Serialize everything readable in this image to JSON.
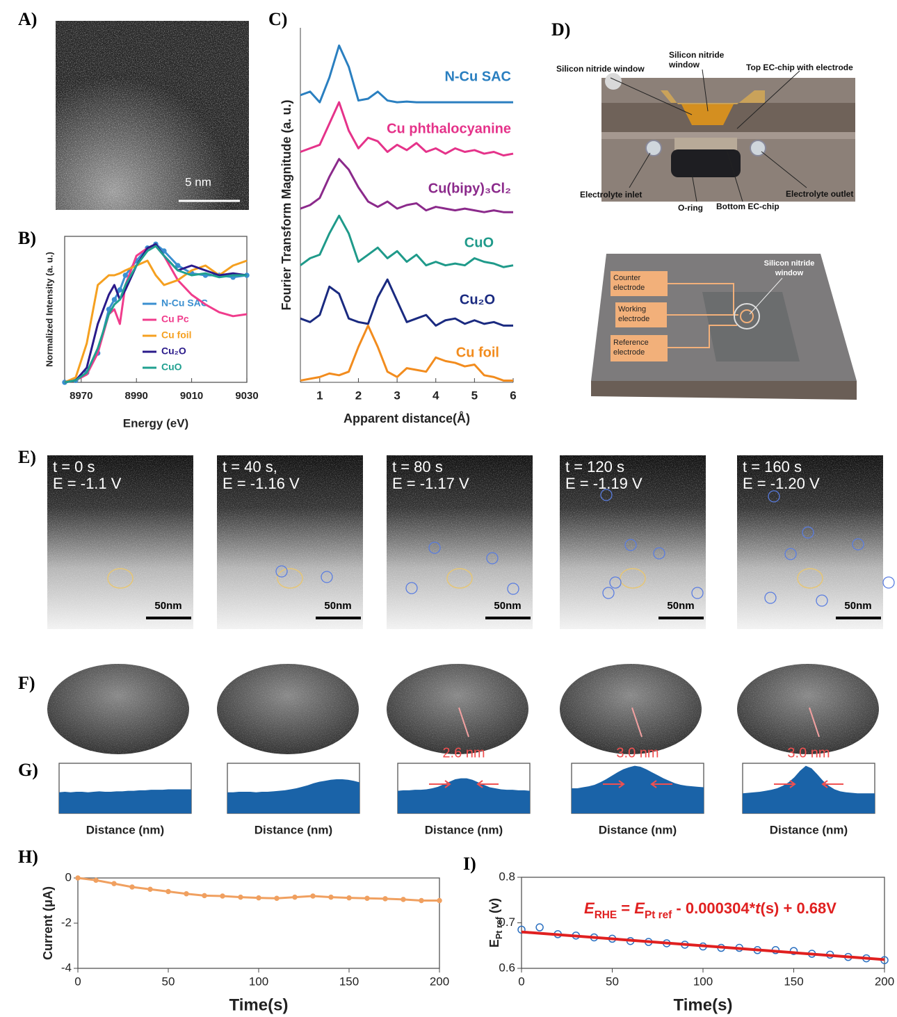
{
  "panel_labels": [
    "A)",
    "B)",
    "C)",
    "D)",
    "E)",
    "F)",
    "G)",
    "H)",
    "I)"
  ],
  "panel_a": {
    "scale": "5 nm"
  },
  "panel_d": {
    "labels": [
      "Silicon nitride window",
      "Silicon nitride window",
      "Top EC-chip with electrode",
      "Electrolyte inlet",
      "O-ring",
      "Bottom EC-chip",
      "Electrolyte outlet",
      "Counter electrode",
      "Working electrode",
      "Reference electrode",
      "Silicon nitride window"
    ]
  },
  "panel_e": {
    "frames": [
      {
        "t": "t = 0 s",
        "E": "E = -1.1 V",
        "scale": "50nm"
      },
      {
        "t": "t = 40 s,",
        "E": "E = -1.16 V",
        "scale": "50nm"
      },
      {
        "t": "t = 80 s",
        "E": "E = -1.17 V",
        "scale": "50nm"
      },
      {
        "t": "t = 120 s",
        "E": "E = -1.19 V",
        "scale": "50nm"
      },
      {
        "t": "t = 160 s",
        "E": "E = -1.20 V",
        "scale": "50nm"
      }
    ]
  },
  "chart_data": [
    {
      "type": "line",
      "xlabel": "Energy (eV)",
      "ylabel": "Normalized Intensity (a. u.)",
      "x": [
        8964,
        8968,
        8972,
        8976,
        8980,
        8982,
        8984,
        8986,
        8990,
        8994,
        8997,
        9000,
        9005,
        9010,
        9015,
        9020,
        9025,
        9030
      ],
      "xlim": [
        8964,
        9030
      ],
      "xticks": [
        8970,
        8990,
        9010,
        9030
      ],
      "ylim": [
        0,
        1.5
      ],
      "legend": "lower right",
      "series": [
        {
          "name": "N-Cu SAC",
          "color": "#3a8fd0",
          "style": "line+markers",
          "values": [
            0,
            0.02,
            0.1,
            0.3,
            0.75,
            0.85,
            0.95,
            1.1,
            1.25,
            1.38,
            1.42,
            1.35,
            1.2,
            1.12,
            1.1,
            1.1,
            1.08,
            1.1
          ]
        },
        {
          "name": "Cu Pc",
          "color": "#f03c8c",
          "style": "line",
          "values": [
            0,
            0.02,
            0.08,
            0.3,
            0.7,
            0.75,
            0.6,
            1.0,
            1.3,
            1.38,
            1.4,
            1.3,
            1.05,
            0.9,
            0.8,
            0.72,
            0.68,
            0.7
          ]
        },
        {
          "name": "Cu foil",
          "color": "#f5a020",
          "style": "line",
          "values": [
            0,
            0.05,
            0.4,
            1.0,
            1.1,
            1.1,
            1.12,
            1.15,
            1.2,
            1.25,
            1.1,
            1.0,
            1.05,
            1.15,
            1.2,
            1.1,
            1.2,
            1.25
          ]
        },
        {
          "name": "Cu₂O",
          "color": "#2a1a8a",
          "style": "line",
          "values": [
            0,
            0.02,
            0.15,
            0.6,
            0.9,
            1.0,
            0.85,
            0.95,
            1.2,
            1.38,
            1.42,
            1.3,
            1.15,
            1.2,
            1.15,
            1.1,
            1.12,
            1.1
          ]
        },
        {
          "name": "CuO",
          "color": "#20a090",
          "style": "line",
          "values": [
            0,
            0.02,
            0.1,
            0.35,
            0.7,
            0.8,
            0.85,
            1.0,
            1.2,
            1.35,
            1.4,
            1.3,
            1.15,
            1.1,
            1.12,
            1.08,
            1.1,
            1.1
          ]
        }
      ]
    },
    {
      "type": "line",
      "xlabel": "Apparent distance(Å)",
      "ylabel": "Fourier Transform Magnitude (a. u.)",
      "x": [
        0.5,
        0.75,
        1,
        1.25,
        1.5,
        1.75,
        2,
        2.25,
        2.5,
        2.75,
        3,
        3.25,
        3.5,
        3.75,
        4,
        4.25,
        4.5,
        4.75,
        5,
        5.25,
        5.5,
        5.75,
        6
      ],
      "xlim": [
        0.5,
        6
      ],
      "xticks": [
        1,
        2,
        3,
        4,
        5,
        6
      ],
      "ylim": [
        0,
        10
      ],
      "legend": "direct",
      "series": [
        {
          "name": "N-Cu SAC",
          "color": "#2a7fc0",
          "style": "line",
          "values": [
            8.1,
            8.2,
            7.9,
            8.6,
            9.5,
            8.9,
            7.95,
            8.0,
            8.2,
            7.95,
            7.9,
            7.92,
            7.9,
            7.9,
            7.9,
            7.9,
            7.9,
            7.9,
            7.9,
            7.9,
            7.9,
            7.9,
            7.9
          ]
        },
        {
          "name": "Cu phthalocyanine",
          "color": "#e5338a",
          "style": "line",
          "values": [
            6.5,
            6.6,
            6.7,
            7.3,
            7.9,
            7.1,
            6.6,
            6.9,
            6.8,
            6.5,
            6.7,
            6.55,
            6.75,
            6.5,
            6.6,
            6.45,
            6.6,
            6.5,
            6.55,
            6.45,
            6.5,
            6.4,
            6.45
          ]
        },
        {
          "name": "Cu(bipy)₃Cl₂",
          "color": "#8b2a8b",
          "style": "line",
          "values": [
            4.9,
            5.0,
            5.2,
            5.8,
            6.3,
            6.0,
            5.5,
            5.1,
            4.95,
            5.1,
            4.9,
            5.0,
            5.05,
            4.85,
            4.95,
            4.9,
            4.85,
            4.9,
            4.85,
            4.8,
            4.85,
            4.8,
            4.8
          ]
        },
        {
          "name": "CuO",
          "color": "#1f9a8a",
          "style": "line",
          "values": [
            3.3,
            3.5,
            3.6,
            4.2,
            4.7,
            4.2,
            3.4,
            3.6,
            3.8,
            3.5,
            3.7,
            3.4,
            3.6,
            3.3,
            3.4,
            3.3,
            3.35,
            3.3,
            3.5,
            3.4,
            3.35,
            3.25,
            3.3
          ]
        },
        {
          "name": "Cu₂O",
          "color": "#1a2a80",
          "style": "line",
          "values": [
            1.8,
            1.7,
            1.9,
            2.7,
            2.5,
            1.8,
            1.7,
            1.65,
            2.4,
            2.9,
            2.3,
            1.7,
            1.8,
            1.9,
            1.6,
            1.75,
            1.8,
            1.65,
            1.75,
            1.65,
            1.7,
            1.6,
            1.6
          ]
        },
        {
          "name": "Cu foil",
          "color": "#f28c1e",
          "style": "line",
          "values": [
            0.05,
            0.1,
            0.15,
            0.25,
            0.2,
            0.3,
            1.0,
            1.6,
            1.0,
            0.3,
            0.15,
            0.4,
            0.35,
            0.3,
            0.7,
            0.6,
            0.55,
            0.45,
            0.5,
            0.2,
            0.15,
            0.05,
            0.05
          ]
        }
      ]
    },
    {
      "type": "line",
      "xlabel": "Time(s)",
      "ylabel": "Current (μA)",
      "x": [
        0,
        10,
        20,
        30,
        40,
        50,
        60,
        70,
        80,
        90,
        100,
        110,
        120,
        130,
        140,
        150,
        160,
        170,
        180,
        190,
        200
      ],
      "xlim": [
        0,
        200
      ],
      "xticks": [
        0,
        50,
        100,
        150,
        200
      ],
      "ylim": [
        -4,
        0
      ],
      "yticks": [
        -4,
        -2,
        0
      ],
      "series": [
        {
          "color": "#f0a060",
          "style": "line+markers",
          "values": [
            0,
            -0.1,
            -0.25,
            -0.4,
            -0.5,
            -0.6,
            -0.7,
            -0.78,
            -0.8,
            -0.85,
            -0.88,
            -0.9,
            -0.85,
            -0.8,
            -0.85,
            -0.88,
            -0.9,
            -0.92,
            -0.95,
            -1.0,
            -1.0
          ]
        }
      ]
    },
    {
      "type": "line",
      "xlabel": "Time(s)",
      "ylabel": [
        "E",
        "Pt ref",
        " (v)"
      ],
      "xlim": [
        0,
        200
      ],
      "xticks": [
        0,
        50,
        100,
        150,
        200
      ],
      "ylim": [
        0.6,
        0.8
      ],
      "yticks": [
        0.6,
        0.7,
        0.8
      ],
      "annotation": [
        "E",
        "RHE",
        " = ",
        "E",
        "Pt ref",
        " - 0.000304*",
        "t",
        "(s) + 0.68V"
      ],
      "series": [
        {
          "color": "#2a6fc0",
          "style": "markers",
          "x": [
            0,
            10,
            20,
            30,
            40,
            50,
            60,
            70,
            80,
            90,
            100,
            110,
            120,
            130,
            140,
            150,
            160,
            170,
            180,
            190,
            200
          ],
          "values": [
            0.685,
            0.69,
            0.675,
            0.672,
            0.668,
            0.665,
            0.66,
            0.658,
            0.655,
            0.652,
            0.648,
            0.645,
            0.645,
            0.64,
            0.64,
            0.638,
            0.632,
            0.63,
            0.625,
            0.622,
            0.618
          ]
        },
        {
          "color": "#e02020",
          "style": "line",
          "x": [
            0,
            200
          ],
          "values": [
            0.68,
            0.6192
          ]
        }
      ]
    },
    {
      "type": "area",
      "xlabel": "Distance (nm)",
      "ylim": [
        0,
        1
      ],
      "color": "#1a63a8",
      "values": [
        0.42,
        0.43,
        0.42,
        0.43,
        0.43,
        0.42,
        0.43,
        0.44,
        0.43,
        0.43,
        0.44,
        0.44,
        0.45,
        0.45,
        0.46,
        0.46,
        0.47,
        0.47,
        0.47,
        0.48,
        0.48,
        0.48,
        0.48,
        0.48
      ]
    },
    {
      "type": "area",
      "xlabel": "Distance (nm)",
      "ylim": [
        0,
        1
      ],
      "color": "#1a63a8",
      "values": [
        0.42,
        0.42,
        0.43,
        0.43,
        0.43,
        0.42,
        0.43,
        0.43,
        0.44,
        0.45,
        0.46,
        0.48,
        0.5,
        0.53,
        0.56,
        0.6,
        0.63,
        0.65,
        0.67,
        0.68,
        0.68,
        0.67,
        0.65,
        0.62
      ]
    },
    {
      "type": "area",
      "xlabel": "Distance (nm)",
      "ylim": [
        0,
        1
      ],
      "color": "#1a63a8",
      "width_label": "2.6 nm",
      "values": [
        0.45,
        0.46,
        0.46,
        0.47,
        0.47,
        0.48,
        0.5,
        0.53,
        0.58,
        0.63,
        0.68,
        0.7,
        0.7,
        0.67,
        0.62,
        0.57,
        0.52,
        0.5,
        0.48,
        0.47,
        0.47,
        0.46,
        0.46,
        0.45
      ]
    },
    {
      "type": "area",
      "xlabel": "Distance (nm)",
      "ylim": [
        0,
        1
      ],
      "color": "#1a63a8",
      "width_label": "3.0 nm",
      "values": [
        0.5,
        0.5,
        0.52,
        0.54,
        0.57,
        0.62,
        0.68,
        0.75,
        0.82,
        0.88,
        0.92,
        0.95,
        0.93,
        0.88,
        0.82,
        0.76,
        0.7,
        0.65,
        0.6,
        0.57,
        0.55,
        0.54,
        0.53,
        0.52
      ]
    },
    {
      "type": "area",
      "xlabel": "Distance (nm)",
      "ylim": [
        0,
        1
      ],
      "color": "#1a63a8",
      "width_label": "3.0 nm",
      "values": [
        0.4,
        0.41,
        0.42,
        0.43,
        0.45,
        0.47,
        0.5,
        0.55,
        0.62,
        0.72,
        0.85,
        0.95,
        0.9,
        0.78,
        0.65,
        0.55,
        0.48,
        0.44,
        0.42,
        0.41,
        0.4,
        0.4,
        0.4,
        0.4
      ]
    }
  ]
}
